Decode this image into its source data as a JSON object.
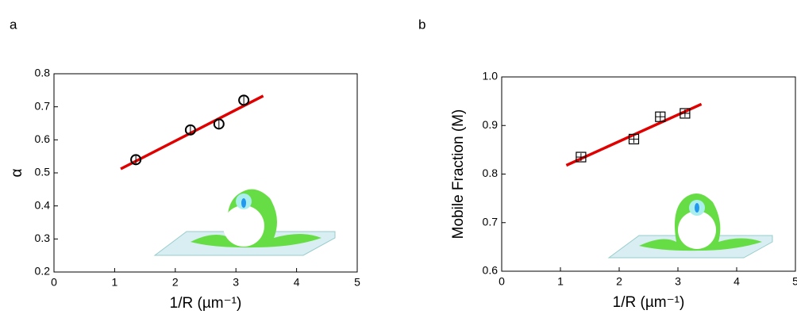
{
  "chart_data": [
    {
      "type": "scatter",
      "label": "a",
      "xlabel": "1/R (µm⁻¹)",
      "ylabel": "α",
      "xlim": [
        0,
        5
      ],
      "ylim": [
        0.2,
        0.8
      ],
      "xticks": [
        0,
        1,
        2,
        3,
        4,
        5
      ],
      "yticks": [
        0.2,
        0.3,
        0.4,
        0.5,
        0.6,
        0.7,
        0.8
      ],
      "marker": "circle",
      "series": [
        {
          "x": [
            1.35,
            2.25,
            2.72,
            3.13
          ],
          "values": [
            0.54,
            0.63,
            0.648,
            0.72
          ],
          "errors": [
            0.015,
            0.012,
            0.015,
            0.012
          ],
          "color": "#000000"
        }
      ],
      "fit": {
        "x": [
          1.1,
          3.45
        ],
        "y": [
          0.512,
          0.733
        ],
        "color": "#e00000"
      }
    },
    {
      "type": "scatter",
      "label": "b",
      "xlabel": "1/R (µm⁻¹)",
      "ylabel": "Mobile Fraction (M)",
      "xlim": [
        0,
        5
      ],
      "ylim": [
        0.6,
        1.0
      ],
      "xticks": [
        0,
        1,
        2,
        3,
        4,
        5
      ],
      "yticks": [
        0.6,
        0.7,
        0.8,
        0.9,
        {
          "value": 1,
          "label": "1.0"
        }
      ],
      "marker": "square",
      "series": [
        {
          "x": [
            1.35,
            2.25,
            2.7,
            3.12
          ],
          "values": [
            0.835,
            0.872,
            0.918,
            0.925
          ],
          "errors": [
            0.008,
            0.008,
            0.01,
            0.008
          ],
          "color": "#000000"
        }
      ],
      "fit": {
        "x": [
          1.1,
          3.4
        ],
        "y": [
          0.818,
          0.944
        ],
        "color": "#e00000"
      }
    }
  ]
}
